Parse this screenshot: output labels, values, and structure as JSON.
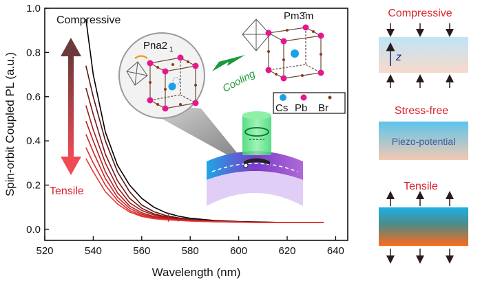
{
  "chart_data": {
    "type": "line",
    "title": "",
    "xlabel": "Wavelength (nm)",
    "ylabel": "Spin-orbit Coupled PL  (a.u.)",
    "xlim": [
      520,
      645
    ],
    "ylim": [
      -0.05,
      1.0
    ],
    "xticks": [
      "520",
      "540",
      "560",
      "580",
      "600",
      "620",
      "640"
    ],
    "yticks": [
      "0.0",
      "0.2",
      "0.4",
      "0.6",
      "0.8",
      "1.0"
    ],
    "x": [
      537,
      540,
      545,
      550,
      555,
      560,
      565,
      570,
      575,
      580,
      590,
      600,
      610,
      620,
      635
    ],
    "series": [
      {
        "color": "#000000",
        "values": [
          0.95,
          0.7,
          0.44,
          0.29,
          0.2,
          0.14,
          0.1,
          0.075,
          0.06,
          0.05,
          0.04,
          0.035,
          0.033,
          0.03,
          0.03
        ]
      },
      {
        "color": "#5a1414",
        "values": [
          0.74,
          0.6,
          0.4,
          0.26,
          0.17,
          0.11,
          0.08,
          0.062,
          0.052,
          0.045,
          0.038,
          0.034,
          0.032,
          0.03,
          0.03
        ]
      },
      {
        "color": "#7a1818",
        "values": [
          0.64,
          0.52,
          0.34,
          0.22,
          0.14,
          0.095,
          0.07,
          0.057,
          0.048,
          0.043,
          0.037,
          0.034,
          0.031,
          0.03,
          0.03
        ]
      },
      {
        "color": "#9a1c1c",
        "values": [
          0.56,
          0.45,
          0.3,
          0.19,
          0.12,
          0.085,
          0.065,
          0.053,
          0.046,
          0.041,
          0.036,
          0.033,
          0.031,
          0.03,
          0.03
        ]
      },
      {
        "color": "#b81e1e",
        "values": [
          0.49,
          0.4,
          0.26,
          0.165,
          0.105,
          0.075,
          0.058,
          0.05,
          0.044,
          0.04,
          0.035,
          0.033,
          0.031,
          0.03,
          0.03
        ]
      },
      {
        "color": "#cc2222",
        "values": [
          0.43,
          0.35,
          0.23,
          0.145,
          0.095,
          0.068,
          0.054,
          0.047,
          0.042,
          0.039,
          0.035,
          0.032,
          0.031,
          0.03,
          0.03
        ]
      },
      {
        "color": "#d92b2b",
        "values": [
          0.37,
          0.3,
          0.2,
          0.13,
          0.085,
          0.062,
          0.05,
          0.045,
          0.041,
          0.038,
          0.034,
          0.032,
          0.03,
          0.03,
          0.03
        ]
      },
      {
        "color": "#e63a3a",
        "values": [
          0.32,
          0.26,
          0.17,
          0.115,
          0.078,
          0.058,
          0.048,
          0.043,
          0.04,
          0.037,
          0.034,
          0.032,
          0.03,
          0.03,
          0.03
        ]
      }
    ],
    "annotations": {
      "compressive": "Compressive",
      "tensile": "Tensile",
      "cooling": "Cooling",
      "phase_high": "Pm3̄m",
      "phase_low": "Pna2",
      "phase_low_sub": "1",
      "legend_cs": "Cs",
      "legend_pb": "Pb",
      "legend_br": "Br"
    },
    "grid": false
  },
  "side_panel": {
    "compressive_label": "Compressive",
    "z_label": "z",
    "stress_free_label": "Stress-free",
    "piezo_label": "Piezo-potential",
    "tensile_label": "Tensile"
  },
  "colors": {
    "compressive_label": "#d9232d",
    "cooling": "#1a9a3a",
    "cs_atom": "#1aa0e8",
    "pb_atom": "#e6178c",
    "br_atom": "#8b3a1a"
  }
}
